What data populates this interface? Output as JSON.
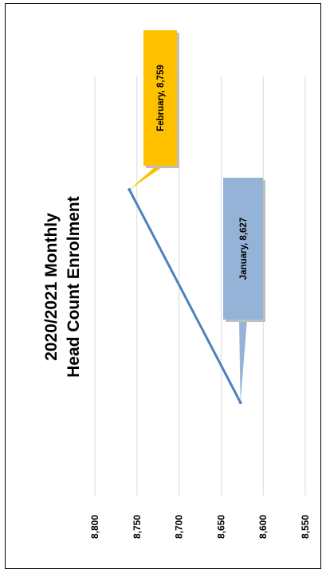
{
  "chart_data": {
    "type": "line",
    "orientation": "rotated-90-ccw",
    "title": [
      "2020/2021 Monthly",
      "Head Count Enrolment"
    ],
    "categories": [
      "January",
      "February"
    ],
    "series": [
      {
        "values": [
          8627,
          8759
        ],
        "color": "#4f81bd"
      }
    ],
    "data_labels": [
      {
        "text": "January, 8,627",
        "color": "#95b3d7"
      },
      {
        "text": "February, 8,759",
        "color": "#ffc000"
      }
    ],
    "ylim": [
      8550,
      8800
    ],
    "yticks": [
      {
        "value": 8800,
        "label": "8,800"
      },
      {
        "value": 8750,
        "label": "8,750"
      },
      {
        "value": 8700,
        "label": "8,700"
      },
      {
        "value": 8650,
        "label": "8,650"
      },
      {
        "value": 8600,
        "label": "8,600"
      },
      {
        "value": 8550,
        "label": "8,550"
      }
    ],
    "grid": true,
    "legend": "none",
    "gridline_color": "#d9d9d9",
    "frame_color": "#000000"
  }
}
